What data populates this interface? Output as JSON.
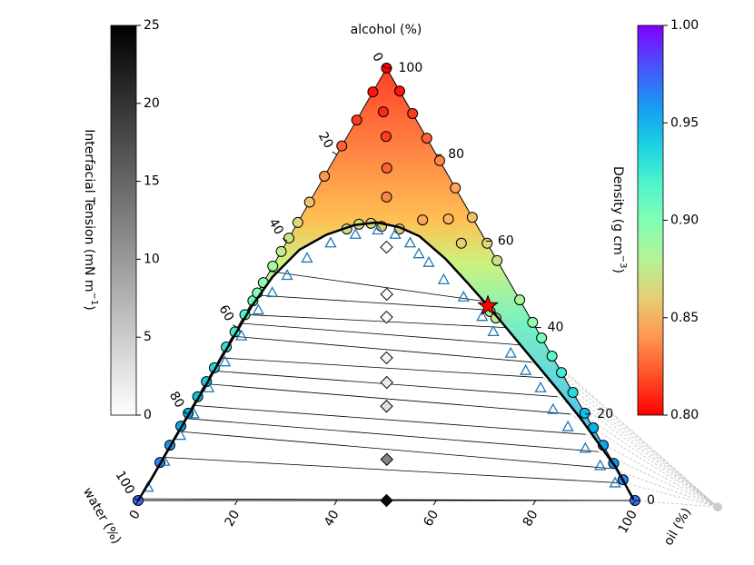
{
  "chart_data": {
    "type": "ternary",
    "alcohol_axis": {
      "label": "alcohol (%)",
      "ticks": [
        0,
        20,
        40,
        60,
        80,
        100
      ]
    },
    "water_axis": {
      "label": "water (%)",
      "ticks": [
        0,
        20,
        40,
        60,
        80,
        100
      ]
    },
    "oil_axis": {
      "label": "oil (%)",
      "ticks": [
        0,
        20,
        40,
        60,
        80,
        100
      ]
    },
    "density_colorbar": {
      "label": "Density (g cm",
      "label_sup": "−3",
      "label_end": ")",
      "lim": [
        0.8,
        1.0
      ],
      "ticks": [
        {
          "value": 0.8,
          "label": "0.80"
        },
        0.85,
        {
          "value": 0.9,
          "label": "0.90"
        },
        0.95,
        {
          "value": 1.0,
          "label": "1.00"
        }
      ]
    },
    "ift_colorbar": {
      "label": "Interfacial Tension (mN m",
      "label_sup": "−1",
      "label_end": ")",
      "lim": [
        0,
        25
      ],
      "ticks": [
        0,
        5,
        10,
        15,
        20,
        25
      ]
    },
    "tie_lines": {
      "left_oil": [
        0,
        0,
        0,
        0,
        0,
        0,
        0,
        0,
        0,
        0,
        0,
        0,
        0
      ],
      "left_alcohol": [
        0.4,
        10,
        16,
        19,
        22,
        27,
        30,
        33,
        38,
        41,
        43,
        47.5,
        53
      ],
      "right_oil": [
        100,
        96,
        91.5,
        87,
        82.4,
        77,
        72.4,
        67.3,
        63.2,
        58.6,
        54,
        49.4,
        47.1
      ],
      "right_alcohol": [
        0,
        4,
        7.4,
        11.3,
        15.3,
        20,
        24,
        28.4,
        32,
        36,
        40,
        44,
        46
      ]
    },
    "convergence_point": {
      "oil": 117.4,
      "alcohol": -1.5
    },
    "series": [
      {
        "marker": "circle",
        "oil": [
          0,
          0,
          0,
          0,
          0,
          0,
          0,
          0,
          0,
          0,
          0,
          0,
          0,
          0,
          0,
          0,
          0,
          0,
          0,
          0,
          0,
          0,
          0,
          0
        ],
        "alcohol": [
          0,
          8.8,
          12.8,
          17.2,
          20.2,
          24,
          27.5,
          30.7,
          35.5,
          39,
          43,
          46.2,
          48,
          50.4,
          54.2,
          57.6,
          60.7,
          64.3,
          69,
          75,
          82,
          88,
          94.5,
          100
        ],
        "density": [
          0.975,
          0.965,
          0.96,
          0.955,
          0.95,
          0.945,
          0.94,
          0.935,
          0.93,
          0.925,
          0.92,
          0.91,
          0.9,
          0.895,
          0.885,
          0.875,
          0.87,
          0.865,
          0.855,
          0.84,
          0.825,
          0.815,
          0.805,
          0.8
        ]
      },
      {
        "marker": "circle",
        "oil": [
          100,
          95.2,
          91.4,
          87.2,
          83.2,
          79.8,
          75,
          70.4,
          66.6,
          62.4,
          58.8,
          53.6,
          44.5,
          40.5,
          34.5,
          27.7,
          21.4,
          16.2,
          10.5,
          5.3
        ],
        "alcohol": [
          0,
          4.8,
          8.6,
          12.8,
          16.8,
          20.2,
          25,
          29.6,
          33.4,
          37.6,
          41.2,
          46.4,
          55.5,
          59.5,
          65.5,
          72.3,
          78.6,
          83.8,
          89.5,
          94.7
        ],
        "density": [
          0.97,
          0.965,
          0.96,
          0.955,
          0.95,
          0.945,
          0.935,
          0.925,
          0.915,
          0.905,
          0.895,
          0.885,
          0.87,
          0.865,
          0.855,
          0.845,
          0.835,
          0.825,
          0.815,
          0.805
        ]
      },
      {
        "marker": "circle",
        "oil": [
          4.4,
          7.8,
          11.6,
          14.9,
          24.8,
          29.9,
          35.3,
          10.6,
          12.5,
          14.8,
          17.3,
          21.2,
          49,
          50.9
        ],
        "alcohol": [
          89.9,
          84.2,
          76.9,
          70.2,
          64.9,
          65.1,
          59.5,
          62.8,
          63.9,
          64.1,
          63.4,
          62.8,
          43.7,
          42.2
        ],
        "density": [
          0.81,
          0.815,
          0.825,
          0.835,
          0.845,
          0.85,
          0.86,
          0.87,
          0.865,
          0.865,
          0.86,
          0.86,
          0.88,
          0.875
        ]
      },
      {
        "marker": "triangle",
        "color": "#1f77b4",
        "oil": [
          0.5,
          0.8,
          1,
          1.2,
          1.2,
          1.5,
          1.8,
          2.2,
          3,
          4,
          6,
          9,
          13,
          17,
          21,
          25,
          28,
          31,
          36,
          42,
          48,
          52,
          58,
          63,
          68,
          73,
          78,
          84,
          89,
          94
        ],
        "alcohol": [
          3,
          9,
          15,
          20,
          26,
          32,
          38,
          44,
          48,
          52,
          56,
          59.5,
          61.5,
          62.5,
          61.5,
          59.5,
          57,
          55,
          51,
          47,
          42.5,
          39,
          34,
          30,
          26,
          21,
          17,
          12,
          8,
          4
        ]
      },
      {
        "marker": "line",
        "color": "#000000",
        "oil": [
          0,
          0.2,
          0.2,
          0.3,
          0.3,
          0.4,
          1.2,
          3.5,
          7.2,
          11.7,
          15.9,
          21,
          26.1,
          33.9,
          41.3,
          48.8,
          56.5,
          64.2,
          71.9,
          79.9,
          86.5,
          92.4,
          99.6
        ],
        "alcohol": [
          0,
          5,
          15,
          25,
          35,
          45,
          51.7,
          58,
          61.5,
          63.7,
          64.3,
          63.2,
          61.1,
          55.9,
          50.2,
          44.3,
          38,
          31.7,
          25.4,
          18.7,
          12.8,
          7.6,
          0.2
        ]
      },
      {
        "marker": "star",
        "color": "#ff0000",
        "oil": [
          47.9
        ],
        "alcohol": [
          45
        ]
      },
      {
        "marker": "diamond",
        "oil": [
          50,
          45.3,
          39.1,
          36.4,
          33.5,
          28.8,
          26.2,
          20.7
        ],
        "alcohol": [
          0,
          9.5,
          21.8,
          27.3,
          33,
          42.4,
          47.7,
          58.6
        ],
        "ift": [
          24,
          12,
          3,
          2,
          1,
          0.5,
          0.2,
          0.1
        ]
      }
    ]
  }
}
